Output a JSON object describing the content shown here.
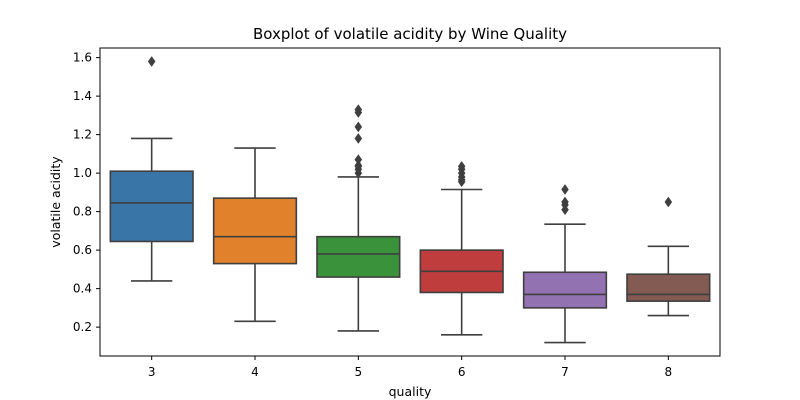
{
  "chart_data": {
    "type": "box",
    "title": "Boxplot of volatile acidity by Wine Quality",
    "xlabel": "quality",
    "ylabel": "volatile acidity",
    "ylim": [
      0.05,
      1.65
    ],
    "yticks": [
      0.2,
      0.4,
      0.6,
      0.8,
      1.0,
      1.2,
      1.4,
      1.6
    ],
    "ytick_labels": [
      "0.2",
      "0.4",
      "0.6",
      "0.8",
      "1.0",
      "1.2",
      "1.4",
      "1.6"
    ],
    "grid": false,
    "categories": [
      "3",
      "4",
      "5",
      "6",
      "7",
      "8"
    ],
    "boxes": [
      {
        "category": "3",
        "color": "#3a75a8",
        "whisker_low": 0.44,
        "q1": 0.645,
        "median": 0.845,
        "q3": 1.01,
        "whisker_high": 1.18,
        "outliers": [
          1.58
        ]
      },
      {
        "category": "4",
        "color": "#e1812c",
        "whisker_low": 0.23,
        "q1": 0.53,
        "median": 0.67,
        "q3": 0.87,
        "whisker_high": 1.13,
        "outliers": []
      },
      {
        "category": "5",
        "color": "#3a923a",
        "whisker_low": 0.18,
        "q1": 0.46,
        "median": 0.58,
        "q3": 0.67,
        "whisker_high": 0.98,
        "outliers": [
          1.0,
          1.02,
          1.035,
          1.04,
          1.07,
          1.18,
          1.24,
          1.315,
          1.33
        ]
      },
      {
        "category": "6",
        "color": "#c03d3e",
        "whisker_low": 0.16,
        "q1": 0.38,
        "median": 0.49,
        "q3": 0.6,
        "whisker_high": 0.915,
        "outliers": [
          0.955,
          0.965,
          0.98,
          1.0,
          1.02,
          1.035
        ]
      },
      {
        "category": "7",
        "color": "#9372b2",
        "whisker_low": 0.12,
        "q1": 0.3,
        "median": 0.37,
        "q3": 0.485,
        "whisker_high": 0.735,
        "outliers": [
          0.81,
          0.835,
          0.85,
          0.915
        ]
      },
      {
        "category": "8",
        "color": "#845b53",
        "whisker_low": 0.26,
        "q1": 0.335,
        "median": 0.37,
        "q3": 0.475,
        "whisker_high": 0.62,
        "outliers": [
          0.85
        ]
      }
    ],
    "line_color": "#3f3f3f"
  }
}
